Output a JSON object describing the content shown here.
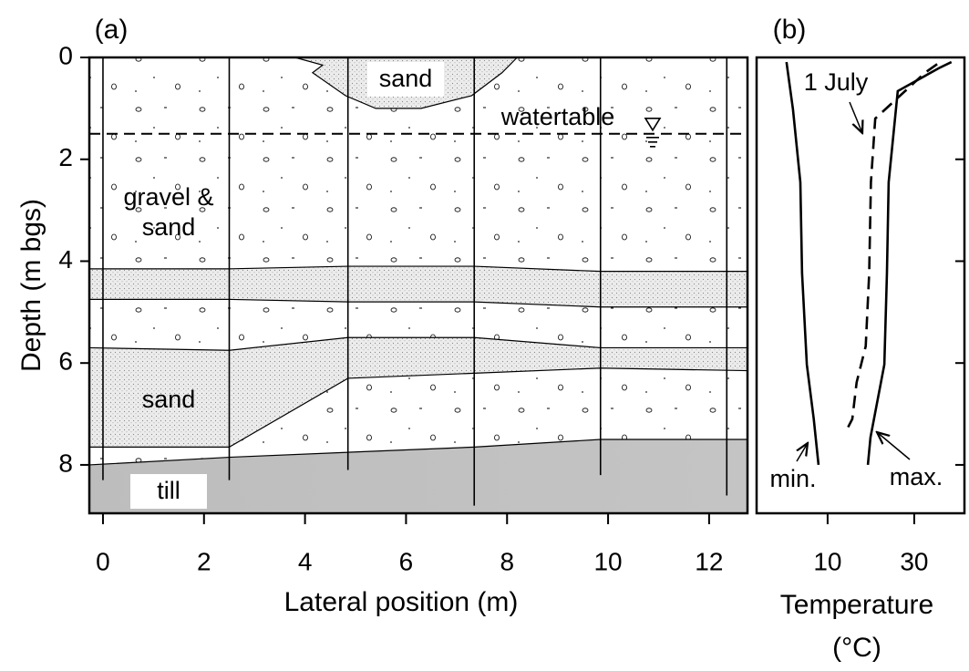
{
  "chart_data": [
    {
      "type": "section",
      "panel_label": "(a)",
      "xlabel": "Lateral position (m)",
      "ylabel": "Depth (m bgs)",
      "xlim": [
        -0.27,
        12.76
      ],
      "ylim": [
        0,
        8.95
      ],
      "y_inverted": true,
      "xticks": [
        0,
        2,
        4,
        6,
        8,
        10,
        12
      ],
      "yticks": [
        0,
        2,
        4,
        6,
        8
      ],
      "layers": [
        {
          "fill": "sand",
          "x": [
            3.8,
            4.35,
            4.15,
            4.8,
            5.4,
            6.3,
            7.3,
            7.9,
            8.2
          ],
          "top": [
            0,
            0,
            0,
            0,
            0,
            0,
            0,
            0,
            0
          ],
          "bottom": [
            0,
            0.15,
            0.3,
            0.75,
            1.0,
            1.0,
            0.75,
            0.3,
            0
          ]
        },
        {
          "fill": "sand",
          "x": [
            -0.27,
            2.5,
            4.85,
            7.35,
            9.85,
            12.76
          ],
          "top": [
            4.15,
            4.15,
            4.1,
            4.1,
            4.2,
            4.2
          ],
          "bottom": [
            4.75,
            4.75,
            4.8,
            4.8,
            4.9,
            4.9
          ]
        },
        {
          "fill": "sand",
          "x": [
            -0.27,
            2.5,
            4.85,
            7.35,
            9.85,
            12.76
          ],
          "top": [
            5.7,
            5.75,
            5.5,
            5.5,
            5.7,
            5.7
          ],
          "bottom": [
            7.65,
            7.65,
            6.3,
            6.2,
            6.1,
            6.15
          ]
        },
        {
          "fill": "till",
          "x": [
            -0.27,
            2.5,
            7.35,
            9.85,
            12.76
          ],
          "top": [
            8.0,
            7.85,
            7.65,
            7.5,
            7.5
          ],
          "bottom": [
            8.95,
            8.95,
            8.95,
            8.95,
            8.95
          ]
        }
      ],
      "wells": {
        "x": [
          0,
          2.5,
          4.85,
          7.35,
          9.85,
          12.35
        ],
        "bottom": [
          8.3,
          8.3,
          8.1,
          8.8,
          8.2,
          8.6
        ]
      },
      "watertable_depth": 1.5,
      "labels": [
        "sand",
        "watertable",
        "gravel &",
        "sand",
        "sand",
        "till"
      ]
    },
    {
      "type": "line",
      "panel_label": "(b)",
      "xlabel": [
        "Temperature",
        "(°C)"
      ],
      "xlim": [
        -6.4,
        41.6
      ],
      "ylim": [
        0,
        8.95
      ],
      "y_inverted": true,
      "xticks": [
        10,
        30
      ],
      "yticks": [
        0,
        2,
        4,
        6,
        8
      ],
      "series": [
        {
          "name": "min.",
          "dash": false,
          "depth": [
            0.09,
            1.02,
            2.45,
            4.24,
            6.03,
            7.1,
            8.0
          ],
          "values": [
            0.5,
            2,
            3.7,
            4.1,
            5.2,
            6.8,
            7.9
          ]
        },
        {
          "name": "1 July",
          "dash": true,
          "depth": [
            0.13,
            0.3,
            1.2,
            2.45,
            4.24,
            5.67,
            6.38,
            7.1,
            7.28
          ],
          "values": [
            35.3,
            32.5,
            21,
            20,
            19.6,
            18.8,
            16.7,
            15.7,
            14.6
          ]
        },
        {
          "name": "max.",
          "dash": false,
          "depth": [
            0.09,
            0.21,
            0.66,
            2.45,
            4.24,
            6.03,
            7.46,
            8.0
          ],
          "values": [
            38.6,
            35.7,
            26.2,
            24.1,
            23.7,
            23.1,
            19.9,
            19.3
          ]
        }
      ]
    }
  ]
}
